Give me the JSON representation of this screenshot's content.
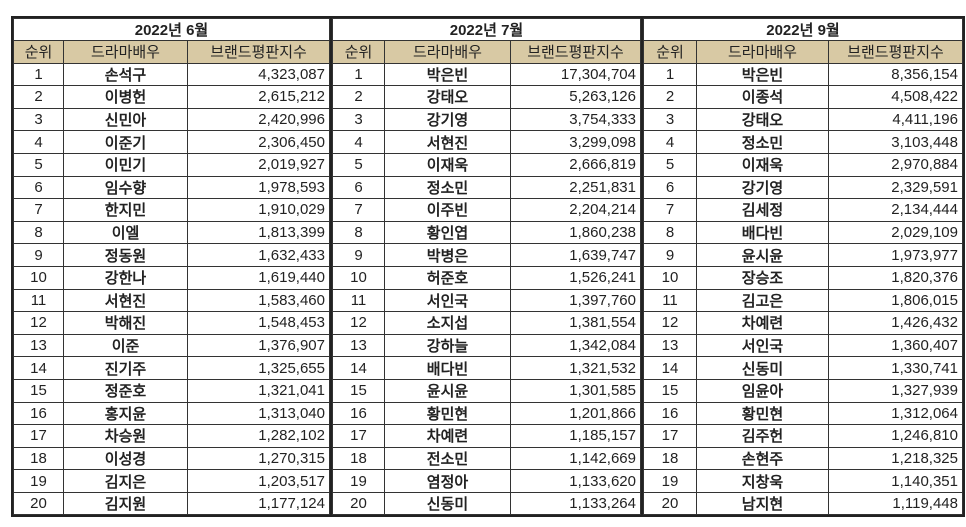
{
  "headers": {
    "rank": "순위",
    "actor": "드라마배우",
    "score": "브랜드평판지수"
  },
  "colors": {
    "header_bg": "#d8c9a4",
    "border": "#222222"
  },
  "panels": [
    {
      "title": "2022년 6월",
      "rows": [
        {
          "rank": "1",
          "name": "손석구",
          "score": "4,323,087"
        },
        {
          "rank": "2",
          "name": "이병헌",
          "score": "2,615,212"
        },
        {
          "rank": "3",
          "name": "신민아",
          "score": "2,420,996"
        },
        {
          "rank": "4",
          "name": "이준기",
          "score": "2,306,450"
        },
        {
          "rank": "5",
          "name": "이민기",
          "score": "2,019,927"
        },
        {
          "rank": "6",
          "name": "임수향",
          "score": "1,978,593"
        },
        {
          "rank": "7",
          "name": "한지민",
          "score": "1,910,029"
        },
        {
          "rank": "8",
          "name": "이엘",
          "score": "1,813,399"
        },
        {
          "rank": "9",
          "name": "정동원",
          "score": "1,632,433"
        },
        {
          "rank": "10",
          "name": "강한나",
          "score": "1,619,440"
        },
        {
          "rank": "11",
          "name": "서현진",
          "score": "1,583,460"
        },
        {
          "rank": "12",
          "name": "박해진",
          "score": "1,548,453"
        },
        {
          "rank": "13",
          "name": "이준",
          "score": "1,376,907"
        },
        {
          "rank": "14",
          "name": "진기주",
          "score": "1,325,655"
        },
        {
          "rank": "15",
          "name": "정준호",
          "score": "1,321,041"
        },
        {
          "rank": "16",
          "name": "홍지윤",
          "score": "1,313,040"
        },
        {
          "rank": "17",
          "name": "차승원",
          "score": "1,282,102"
        },
        {
          "rank": "18",
          "name": "이성경",
          "score": "1,270,315"
        },
        {
          "rank": "19",
          "name": "김지은",
          "score": "1,203,517"
        },
        {
          "rank": "20",
          "name": "김지원",
          "score": "1,177,124"
        }
      ]
    },
    {
      "title": "2022년 7월",
      "rows": [
        {
          "rank": "1",
          "name": "박은빈",
          "score": "17,304,704"
        },
        {
          "rank": "2",
          "name": "강태오",
          "score": "5,263,126"
        },
        {
          "rank": "3",
          "name": "강기영",
          "score": "3,754,333"
        },
        {
          "rank": "4",
          "name": "서현진",
          "score": "3,299,098"
        },
        {
          "rank": "5",
          "name": "이재욱",
          "score": "2,666,819"
        },
        {
          "rank": "6",
          "name": "정소민",
          "score": "2,251,831"
        },
        {
          "rank": "7",
          "name": "이주빈",
          "score": "2,204,214"
        },
        {
          "rank": "8",
          "name": "황인엽",
          "score": "1,860,238"
        },
        {
          "rank": "9",
          "name": "박병은",
          "score": "1,639,747"
        },
        {
          "rank": "10",
          "name": "허준호",
          "score": "1,526,241"
        },
        {
          "rank": "11",
          "name": "서인국",
          "score": "1,397,760"
        },
        {
          "rank": "12",
          "name": "소지섭",
          "score": "1,381,554"
        },
        {
          "rank": "13",
          "name": "강하늘",
          "score": "1,342,084"
        },
        {
          "rank": "14",
          "name": "배다빈",
          "score": "1,321,532"
        },
        {
          "rank": "15",
          "name": "윤시윤",
          "score": "1,301,585"
        },
        {
          "rank": "16",
          "name": "황민현",
          "score": "1,201,866"
        },
        {
          "rank": "17",
          "name": "차예련",
          "score": "1,185,157"
        },
        {
          "rank": "18",
          "name": "전소민",
          "score": "1,142,669"
        },
        {
          "rank": "19",
          "name": "염정아",
          "score": "1,133,620"
        },
        {
          "rank": "20",
          "name": "신동미",
          "score": "1,133,264"
        }
      ]
    },
    {
      "title": "2022년 9월",
      "rows": [
        {
          "rank": "1",
          "name": "박은빈",
          "score": "8,356,154"
        },
        {
          "rank": "2",
          "name": "이종석",
          "score": "4,508,422"
        },
        {
          "rank": "3",
          "name": "강태오",
          "score": "4,411,196"
        },
        {
          "rank": "4",
          "name": "정소민",
          "score": "3,103,448"
        },
        {
          "rank": "5",
          "name": "이재욱",
          "score": "2,970,884"
        },
        {
          "rank": "6",
          "name": "강기영",
          "score": "2,329,591"
        },
        {
          "rank": "7",
          "name": "김세정",
          "score": "2,134,444"
        },
        {
          "rank": "8",
          "name": "배다빈",
          "score": "2,029,109"
        },
        {
          "rank": "9",
          "name": "윤시윤",
          "score": "1,973,977"
        },
        {
          "rank": "10",
          "name": "장승조",
          "score": "1,820,376"
        },
        {
          "rank": "11",
          "name": "김고은",
          "score": "1,806,015"
        },
        {
          "rank": "12",
          "name": "차예련",
          "score": "1,426,432"
        },
        {
          "rank": "13",
          "name": "서인국",
          "score": "1,360,407"
        },
        {
          "rank": "14",
          "name": "신동미",
          "score": "1,330,741"
        },
        {
          "rank": "15",
          "name": "임윤아",
          "score": "1,327,939"
        },
        {
          "rank": "16",
          "name": "황민현",
          "score": "1,312,064"
        },
        {
          "rank": "17",
          "name": "김주헌",
          "score": "1,246,810"
        },
        {
          "rank": "18",
          "name": "손현주",
          "score": "1,218,325"
        },
        {
          "rank": "19",
          "name": "지창욱",
          "score": "1,140,351"
        },
        {
          "rank": "20",
          "name": "남지현",
          "score": "1,119,448"
        }
      ]
    }
  ]
}
